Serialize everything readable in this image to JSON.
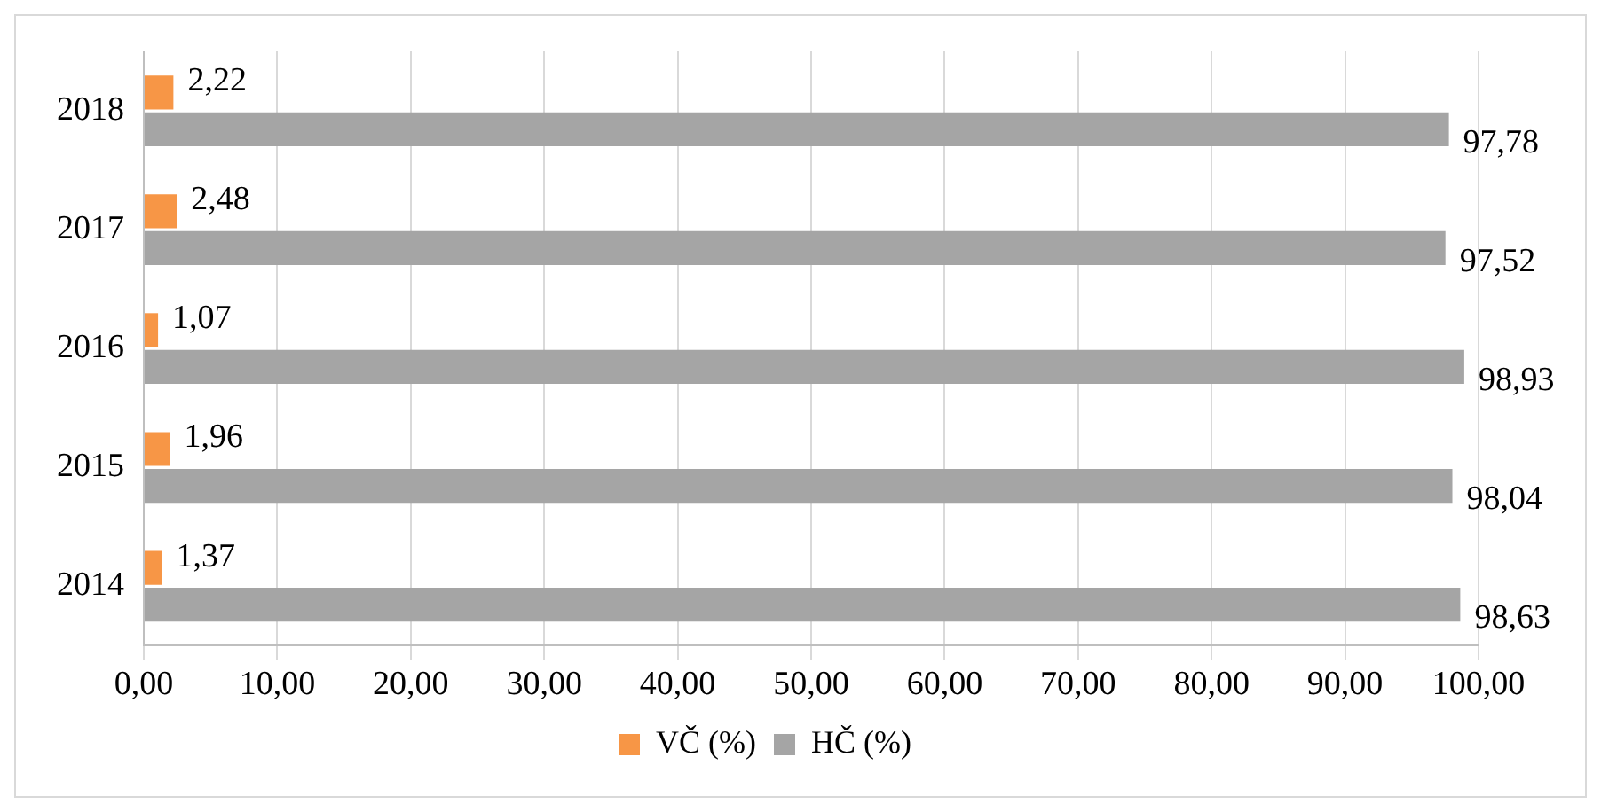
{
  "chart_data": {
    "type": "bar",
    "orientation": "horizontal",
    "categories": [
      "2018",
      "2017",
      "2016",
      "2015",
      "2014"
    ],
    "series": [
      {
        "name": "VČ (%)",
        "color": "#f79646",
        "values": [
          2.22,
          2.48,
          1.07,
          1.96,
          1.37
        ],
        "value_labels": [
          "2,22",
          "2,48",
          "1,07",
          "1,96",
          "1,37"
        ]
      },
      {
        "name": "HČ (%)",
        "color": "#a5a5a5",
        "values": [
          97.78,
          97.52,
          98.93,
          98.04,
          98.63
        ],
        "value_labels": [
          "97,78",
          "97,52",
          "98,93",
          "98,04",
          "98,63"
        ]
      }
    ],
    "xlim": [
      0,
      100
    ],
    "xticks": [
      {
        "value": 0,
        "label": "0,00"
      },
      {
        "value": 10,
        "label": "10,00"
      },
      {
        "value": 20,
        "label": "20,00"
      },
      {
        "value": 30,
        "label": "30,00"
      },
      {
        "value": 40,
        "label": "40,00"
      },
      {
        "value": 50,
        "label": "50,00"
      },
      {
        "value": 60,
        "label": "60,00"
      },
      {
        "value": 70,
        "label": "70,00"
      },
      {
        "value": 80,
        "label": "80,00"
      },
      {
        "value": 90,
        "label": "90,00"
      },
      {
        "value": 100,
        "label": "100,00"
      }
    ],
    "grid": "x",
    "legend": "bottom"
  }
}
